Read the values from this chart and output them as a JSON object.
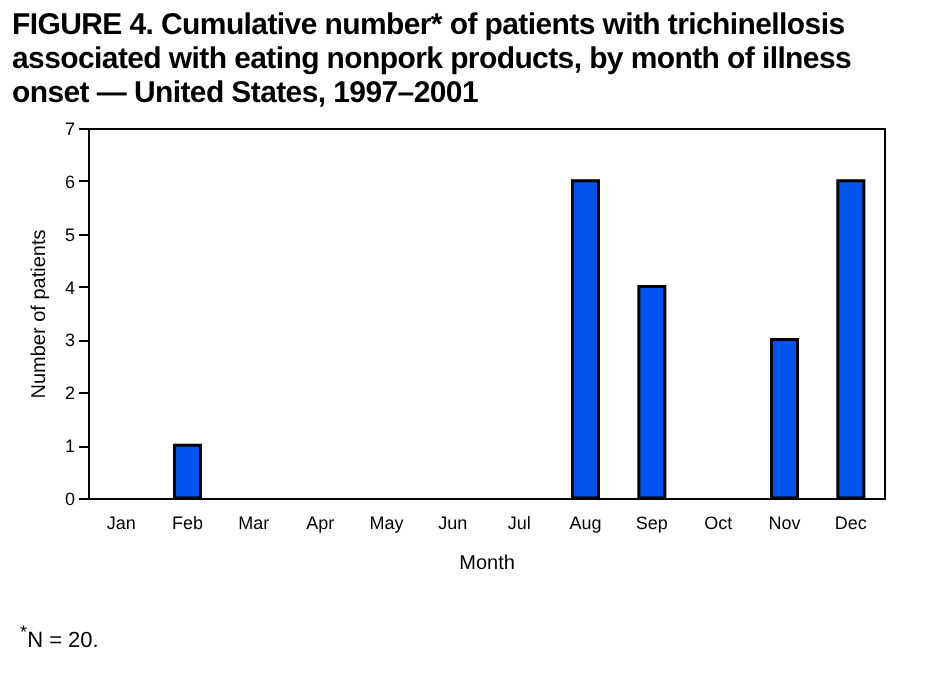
{
  "chart_data": {
    "type": "bar",
    "title": "FIGURE 4. Cumulative number* of patients with trichinellosis associated with eating nonpork products, by month of illness onset — United States, 1997–2001",
    "xlabel": "Month",
    "ylabel": "Number of patients",
    "categories": [
      "Jan",
      "Feb",
      "Mar",
      "Apr",
      "May",
      "Jun",
      "Jul",
      "Aug",
      "Sep",
      "Oct",
      "Nov",
      "Dec"
    ],
    "values": [
      0,
      1,
      0,
      0,
      0,
      0,
      0,
      6,
      4,
      0,
      3,
      6
    ],
    "color": "#0055ee",
    "ylim": [
      0,
      7
    ],
    "yticks": [
      0,
      1,
      2,
      3,
      4,
      5,
      6,
      7
    ],
    "grid": false,
    "annotations": [
      "$^{*}$N = 20."
    ]
  }
}
